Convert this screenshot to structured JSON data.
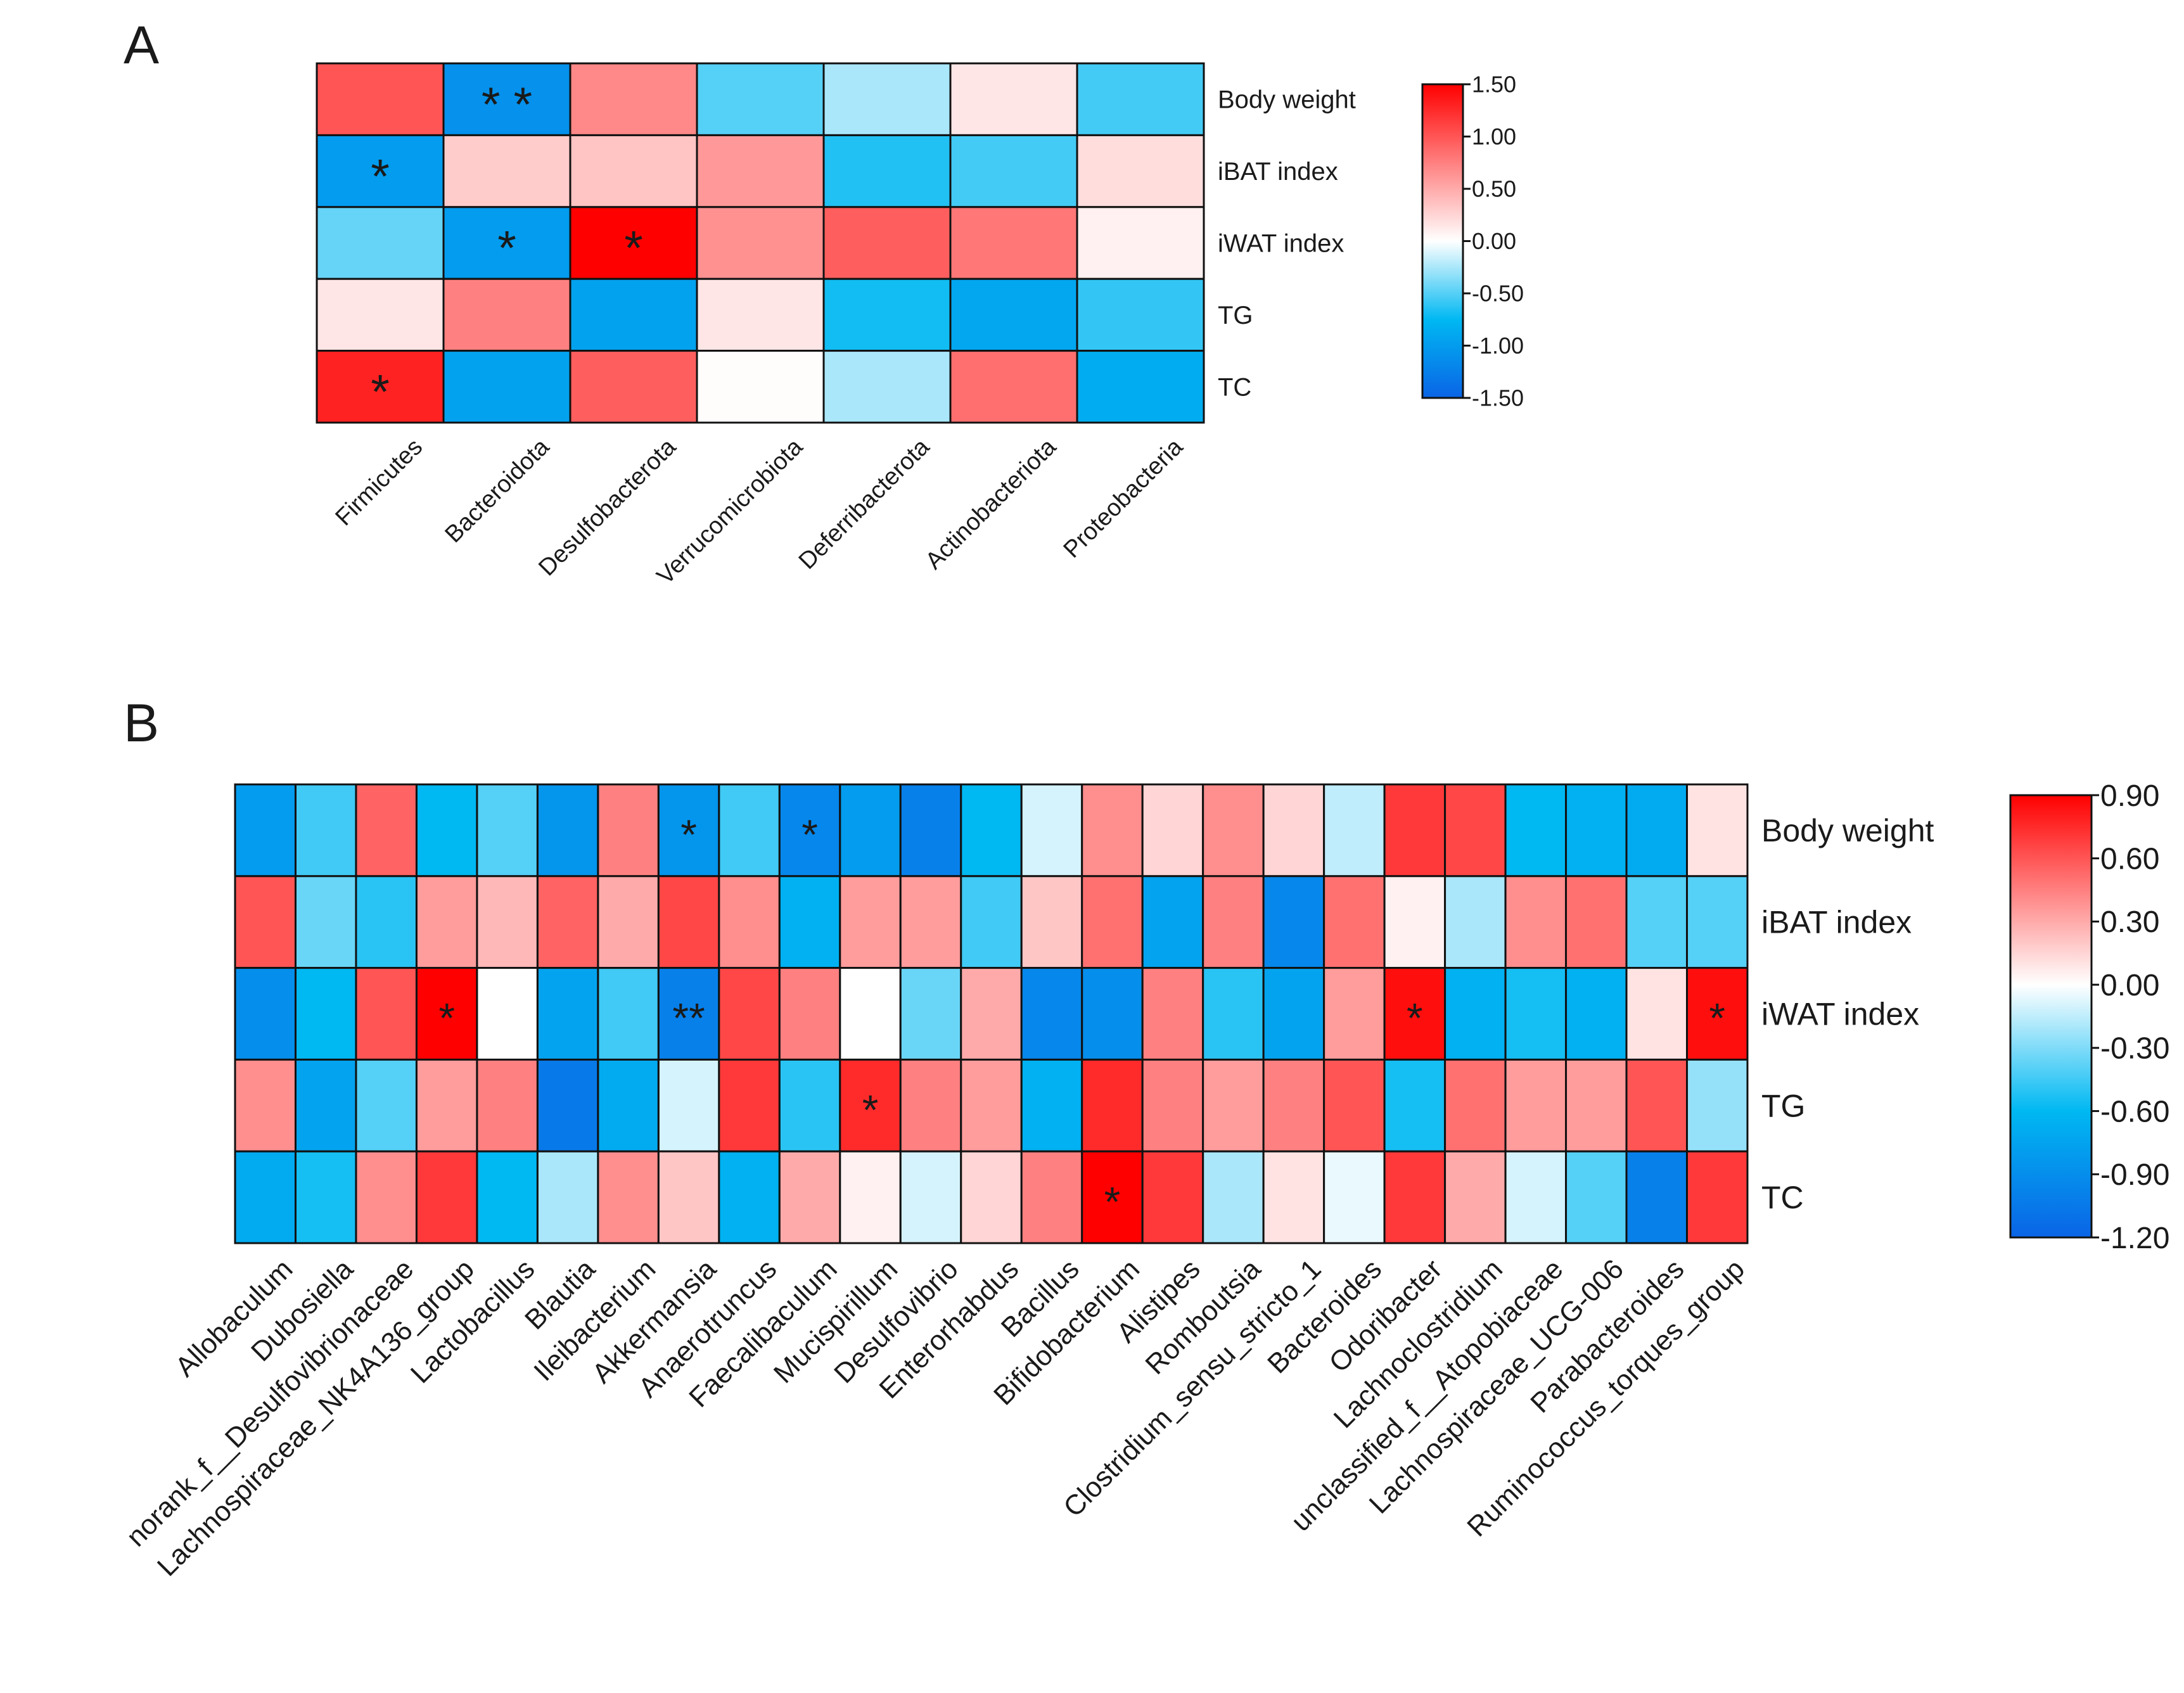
{
  "chart_data": [
    {
      "type": "heatmap",
      "title": "A",
      "x": [
        "Firmicutes",
        "Bacteroidota",
        "Desulfobacterota",
        "Verrucomicrobiota",
        "Deferribacterota",
        "Actinobacteriota",
        "Proteobacteria"
      ],
      "y": [
        "Body weight",
        "iBAT index",
        "iWAT index",
        "TG",
        "TC"
      ],
      "values": [
        [
          1.0,
          -1.1,
          0.7,
          -0.5,
          -0.25,
          0.15,
          -0.55
        ],
        [
          -1.0,
          0.3,
          0.35,
          0.6,
          -0.65,
          -0.55,
          0.2
        ],
        [
          -0.45,
          -1.0,
          1.5,
          0.65,
          0.95,
          0.8,
          0.08
        ],
        [
          0.15,
          0.75,
          -0.95,
          0.15,
          -0.7,
          -0.9,
          -0.6
        ],
        [
          1.3,
          -0.95,
          0.95,
          0.02,
          -0.25,
          0.85,
          -0.85
        ]
      ],
      "annotations": [
        {
          "row": 0,
          "col": 1,
          "label": "* *"
        },
        {
          "row": 1,
          "col": 0,
          "label": "*"
        },
        {
          "row": 2,
          "col": 1,
          "label": "*"
        },
        {
          "row": 2,
          "col": 2,
          "label": "*"
        },
        {
          "row": 4,
          "col": 0,
          "label": "*"
        }
      ],
      "colors": [
        "#0a64e6",
        "#00b8f2",
        "#ffffff",
        "#ff0000"
      ],
      "zlim": [
        -1.5,
        1.5
      ],
      "zticks": [
        {
          "value": 1.5,
          "label": "1.50"
        },
        {
          "value": 1.0,
          "label": "1.00"
        },
        {
          "value": 0.5,
          "label": "0.50"
        },
        {
          "value": 0,
          "label": "0.00"
        },
        {
          "value": -0.5,
          "label": "-0.50"
        },
        {
          "value": -1.0,
          "label": "-1.00"
        },
        {
          "value": -1.5,
          "label": "-1.50"
        }
      ]
    },
    {
      "type": "heatmap",
      "title": "B",
      "x": [
        "Allobaculum",
        "Dubosiella",
        "norank_f__Desulfovibrionaceae",
        "Lachnospiraceae_NK4A136_group",
        "Lactobacillus",
        "Blautia",
        "Ileibacterium",
        "Akkermansia",
        "Anaerotruncus",
        "Faecalibaculum",
        "Mucispirillum",
        "Desulfovibrio",
        "Enterorhabdus",
        "Bacillus",
        "Bifidobacterium",
        "Alistipes",
        "Romboutsia",
        "Clostridium_sensu_stricto_1",
        "Bacteroides",
        "Odoribacter",
        "Lachnoclostridium",
        "unclassified_f__Atopobiaceae",
        "Lachnospiraceae_UCG-006",
        "Parabacteroides",
        "Ruminococcus_torques_group"
      ],
      "y": [
        "Body weight",
        "iBAT index",
        "iWAT index",
        "TG",
        "TC"
      ],
      "values": [
        [
          -0.8,
          -0.45,
          0.55,
          -0.6,
          -0.4,
          -0.85,
          0.45,
          -0.85,
          -0.45,
          -0.95,
          -0.8,
          -1.0,
          -0.6,
          -0.1,
          0.4,
          0.15,
          0.4,
          0.15,
          -0.15,
          0.7,
          0.65,
          -0.6,
          -0.65,
          -0.7,
          0.1
        ],
        [
          0.6,
          -0.35,
          -0.5,
          0.35,
          0.25,
          0.55,
          0.3,
          0.65,
          0.4,
          -0.65,
          0.35,
          0.35,
          -0.45,
          0.2,
          0.5,
          -0.75,
          0.45,
          -0.95,
          0.5,
          0.05,
          -0.2,
          0.4,
          0.5,
          -0.4,
          -0.4
        ],
        [
          -0.9,
          -0.6,
          0.6,
          0.9,
          0.0,
          -0.75,
          -0.45,
          -1.0,
          0.65,
          0.45,
          0.0,
          -0.35,
          0.3,
          -0.95,
          -0.9,
          0.45,
          -0.5,
          -0.75,
          0.35,
          0.85,
          -0.65,
          -0.55,
          -0.65,
          0.1,
          0.85
        ],
        [
          0.4,
          -0.75,
          -0.4,
          0.35,
          0.45,
          -1.05,
          -0.7,
          -0.1,
          0.7,
          -0.5,
          0.75,
          0.45,
          0.35,
          -0.65,
          0.75,
          0.45,
          0.35,
          0.45,
          0.6,
          -0.55,
          0.5,
          0.35,
          0.35,
          0.6,
          -0.25
        ],
        [
          -0.7,
          -0.55,
          0.4,
          0.7,
          -0.6,
          -0.2,
          0.4,
          0.2,
          -0.65,
          0.3,
          0.05,
          -0.1,
          0.15,
          0.45,
          0.9,
          0.7,
          -0.2,
          0.1,
          -0.05,
          0.7,
          0.3,
          -0.1,
          -0.4,
          -1.0,
          0.7
        ]
      ],
      "annotations": [
        {
          "row": 0,
          "col": 7,
          "label": "*"
        },
        {
          "row": 0,
          "col": 9,
          "label": "*"
        },
        {
          "row": 2,
          "col": 3,
          "label": "*"
        },
        {
          "row": 2,
          "col": 7,
          "label": "**"
        },
        {
          "row": 2,
          "col": 19,
          "label": "*"
        },
        {
          "row": 2,
          "col": 24,
          "label": "*"
        },
        {
          "row": 3,
          "col": 10,
          "label": "*"
        },
        {
          "row": 4,
          "col": 14,
          "label": "*"
        }
      ],
      "colors": [
        "#0a64e6",
        "#00b8f2",
        "#ffffff",
        "#ff0000"
      ],
      "zlim": [
        -1.2,
        0.9
      ],
      "zticks": [
        {
          "value": 0.9,
          "label": "0.90"
        },
        {
          "value": 0.6,
          "label": "0.60"
        },
        {
          "value": 0.3,
          "label": "0.30"
        },
        {
          "value": 0,
          "label": "0.00"
        },
        {
          "value": -0.3,
          "label": "-0.30"
        },
        {
          "value": -0.6,
          "label": "-0.60"
        },
        {
          "value": -0.9,
          "label": "-0.90"
        },
        {
          "value": -1.2,
          "label": "-1.20"
        }
      ]
    }
  ]
}
